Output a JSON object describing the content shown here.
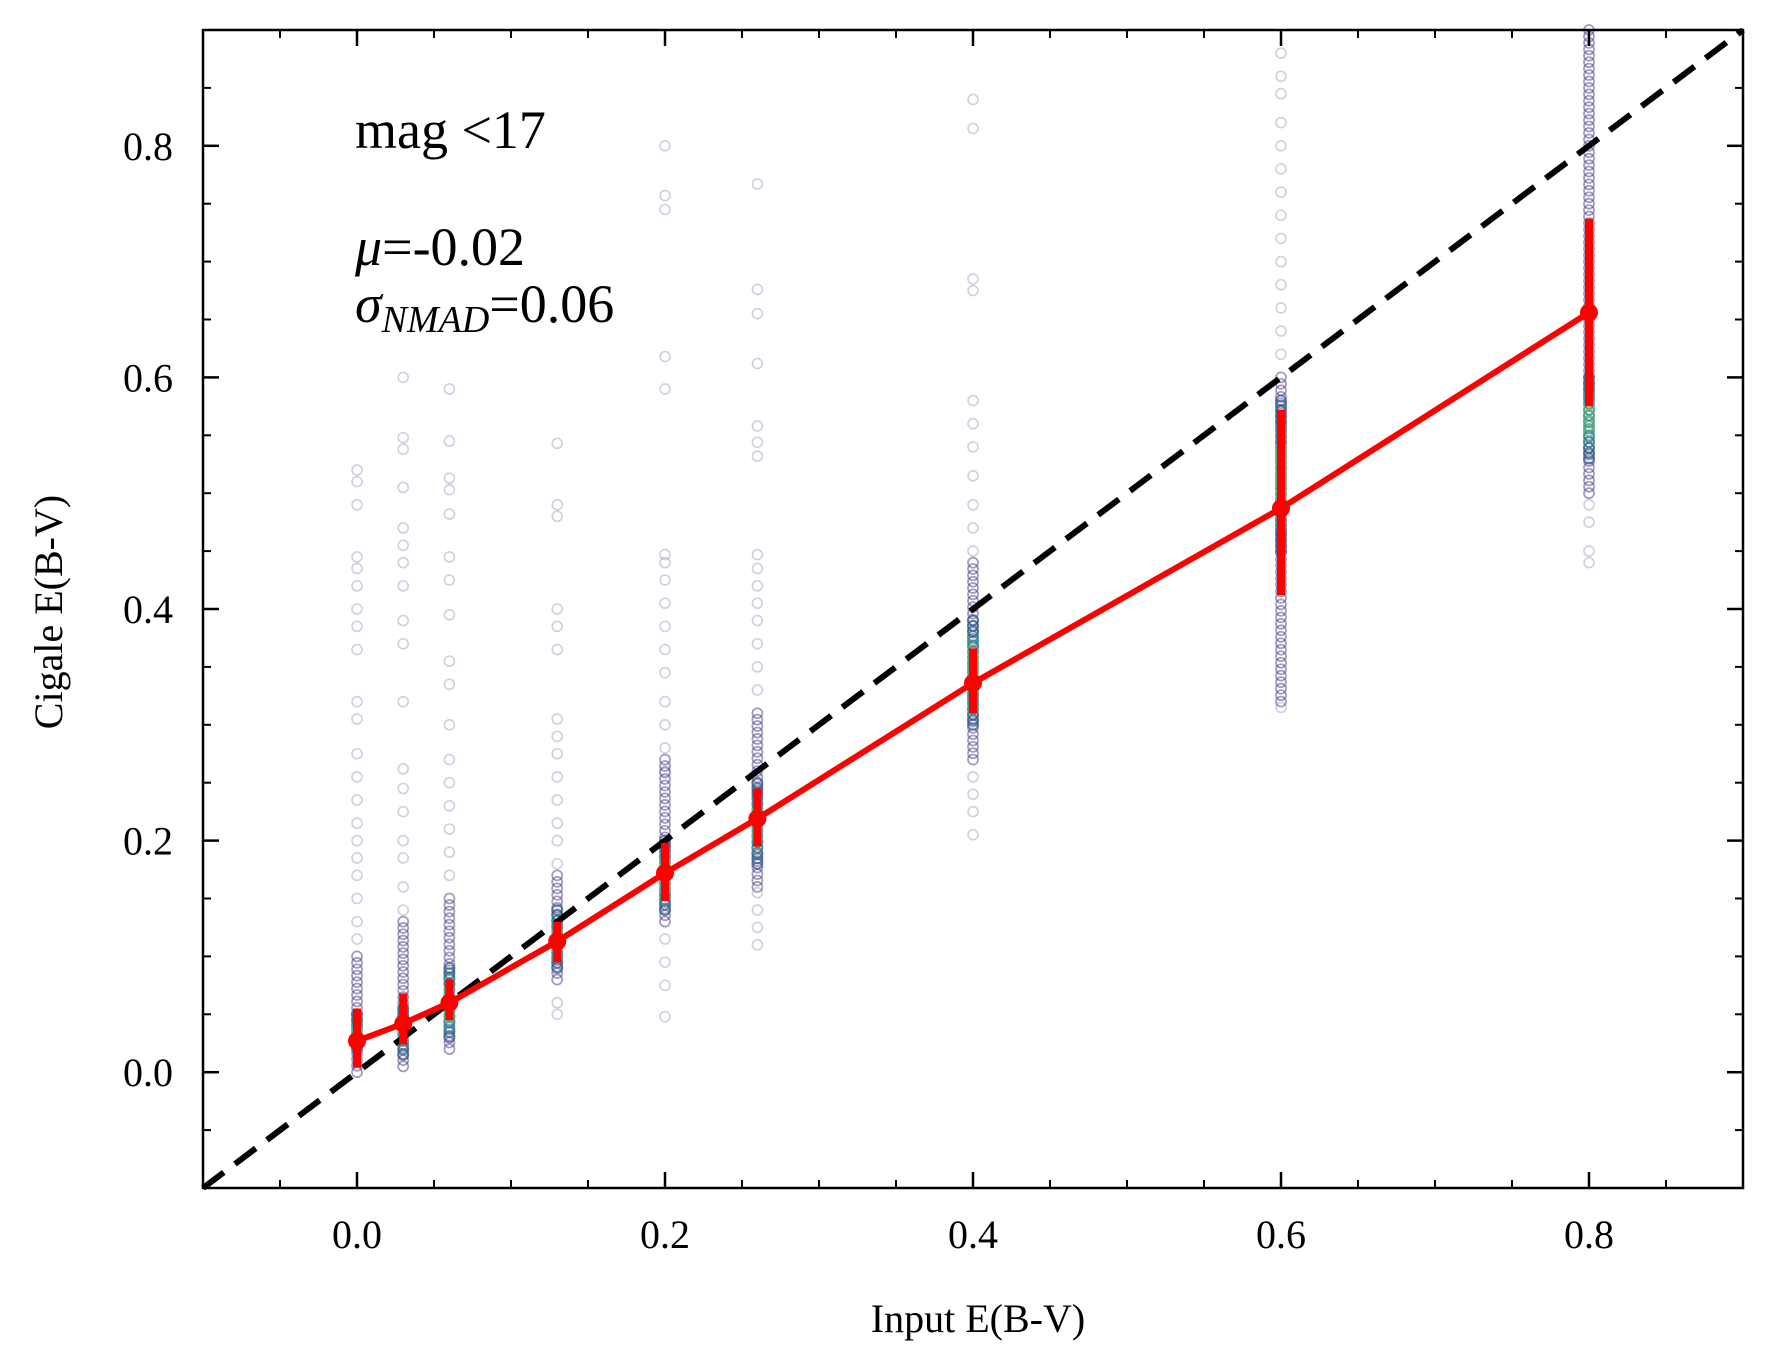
{
  "chart_data": {
    "type": "scatter",
    "xlabel": "Input E(B-V)",
    "ylabel": "Cigale E(B-V)",
    "xlim": [
      -0.1,
      0.9
    ],
    "ylim": [
      -0.1,
      0.9
    ],
    "xticks": [
      "0.0",
      "0.2",
      "0.4",
      "0.6",
      "0.8"
    ],
    "yticks": [
      "0.0",
      "0.2",
      "0.4",
      "0.6",
      "0.8"
    ],
    "grid": false,
    "annotations": {
      "mag": "mag <17",
      "mu_symbol": "μ",
      "mu_value": "=-0.02",
      "sigma_symbol": "σ",
      "sigma_sub": "NMAD",
      "sigma_value": "=0.06"
    },
    "one_to_one_line": {
      "style": "dashed",
      "color": "#000000",
      "x": [
        -0.1,
        0.9
      ],
      "y": [
        -0.1,
        0.9
      ]
    },
    "median_series": {
      "color": "#ff0000",
      "x": [
        0.0,
        0.03,
        0.06,
        0.13,
        0.2,
        0.26,
        0.4,
        0.6,
        0.8
      ],
      "y": [
        0.027,
        0.042,
        0.06,
        0.113,
        0.172,
        0.219,
        0.336,
        0.487,
        0.656
      ],
      "err_low": [
        0.004,
        0.024,
        0.045,
        0.095,
        0.148,
        0.195,
        0.31,
        0.412,
        0.575
      ],
      "err_high": [
        0.055,
        0.068,
        0.08,
        0.13,
        0.198,
        0.245,
        0.366,
        0.572,
        0.737
      ]
    },
    "scatter_columns": [
      {
        "x": 0.0,
        "outliers": [
          0.52,
          0.51,
          0.49,
          0.445,
          0.435,
          0.42,
          0.4,
          0.385,
          0.365,
          0.32,
          0.305,
          0.275,
          0.255,
          0.235,
          0.215,
          0.2,
          0.185,
          0.17,
          0.15,
          0.13,
          0.115
        ],
        "dense": [
          0.0,
          0.1
        ],
        "core": [
          0.02,
          0.05
        ]
      },
      {
        "x": 0.03,
        "outliers": [
          0.6,
          0.548,
          0.538,
          0.505,
          0.47,
          0.455,
          0.44,
          0.42,
          0.39,
          0.37,
          0.32,
          0.262,
          0.245,
          0.225,
          0.2,
          0.185,
          0.16,
          0.14
        ],
        "dense": [
          0.005,
          0.13
        ],
        "core": [
          0.015,
          0.055
        ]
      },
      {
        "x": 0.06,
        "outliers": [
          0.59,
          0.545,
          0.513,
          0.503,
          0.482,
          0.445,
          0.425,
          0.395,
          0.355,
          0.335,
          0.3,
          0.27,
          0.25,
          0.23,
          0.21,
          0.19,
          0.17
        ],
        "dense": [
          0.02,
          0.15
        ],
        "core": [
          0.03,
          0.09
        ]
      },
      {
        "x": 0.13,
        "outliers": [
          0.543,
          0.49,
          0.48,
          0.4,
          0.385,
          0.365,
          0.305,
          0.29,
          0.275,
          0.255,
          0.235,
          0.215,
          0.2,
          0.18,
          0.06,
          0.05
        ],
        "dense": [
          0.08,
          0.17
        ],
        "core": [
          0.09,
          0.14
        ]
      },
      {
        "x": 0.2,
        "outliers": [
          0.8,
          0.757,
          0.745,
          0.618,
          0.59,
          0.447,
          0.44,
          0.425,
          0.405,
          0.385,
          0.365,
          0.345,
          0.32,
          0.3,
          0.28,
          0.26,
          0.115,
          0.095,
          0.075,
          0.048
        ],
        "dense": [
          0.13,
          0.27
        ],
        "core": [
          0.14,
          0.2
        ]
      },
      {
        "x": 0.26,
        "outliers": [
          0.767,
          0.676,
          0.655,
          0.612,
          0.558,
          0.544,
          0.532,
          0.447,
          0.435,
          0.42,
          0.405,
          0.39,
          0.37,
          0.35,
          0.33,
          0.155,
          0.14,
          0.125,
          0.11
        ],
        "dense": [
          0.16,
          0.31
        ],
        "core": [
          0.18,
          0.25
        ]
      },
      {
        "x": 0.4,
        "outliers": [
          0.84,
          0.815,
          0.685,
          0.675,
          0.58,
          0.56,
          0.54,
          0.515,
          0.49,
          0.47,
          0.45,
          0.255,
          0.24,
          0.225,
          0.205
        ],
        "dense": [
          0.27,
          0.44
        ],
        "core": [
          0.3,
          0.39
        ]
      },
      {
        "x": 0.6,
        "outliers": [
          0.88,
          0.86,
          0.845,
          0.82,
          0.8,
          0.78,
          0.76,
          0.74,
          0.72,
          0.7,
          0.68,
          0.66,
          0.64,
          0.62,
          0.315
        ],
        "dense": [
          0.32,
          0.6
        ],
        "core": [
          0.45,
          0.58
        ]
      },
      {
        "x": 0.8,
        "outliers": [
          0.49,
          0.475,
          0.45,
          0.44
        ],
        "dense": [
          0.5,
          0.9
        ],
        "core": [
          0.53,
          0.6
        ]
      }
    ]
  }
}
